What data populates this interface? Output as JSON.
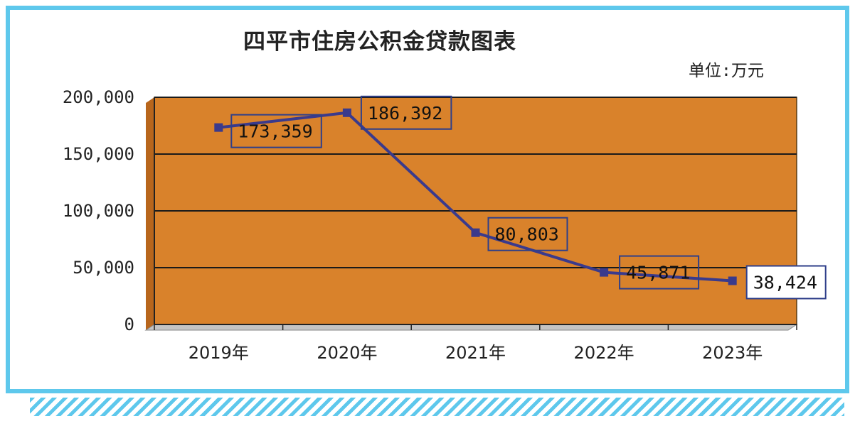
{
  "chart_data": {
    "type": "line",
    "title": "四平市住房公积金贷款图表",
    "unit_label": "单位:万元",
    "categories": [
      "2019年",
      "2020年",
      "2021年",
      "2022年",
      "2023年"
    ],
    "series": [
      {
        "values": [
          173359,
          186392,
          80803,
          45871,
          38424
        ],
        "data_labels": [
          "173,359",
          "186,392",
          "80,803",
          "45,871",
          "38,424"
        ],
        "color": "#3a3a8c"
      }
    ],
    "yticks": [
      "0",
      "50,000",
      "100,000",
      "150,000",
      "200,000"
    ],
    "ylim": [
      0,
      200000
    ],
    "grid": true,
    "plot_background": "#d9822b",
    "frame_color": "#5ec8ec"
  }
}
